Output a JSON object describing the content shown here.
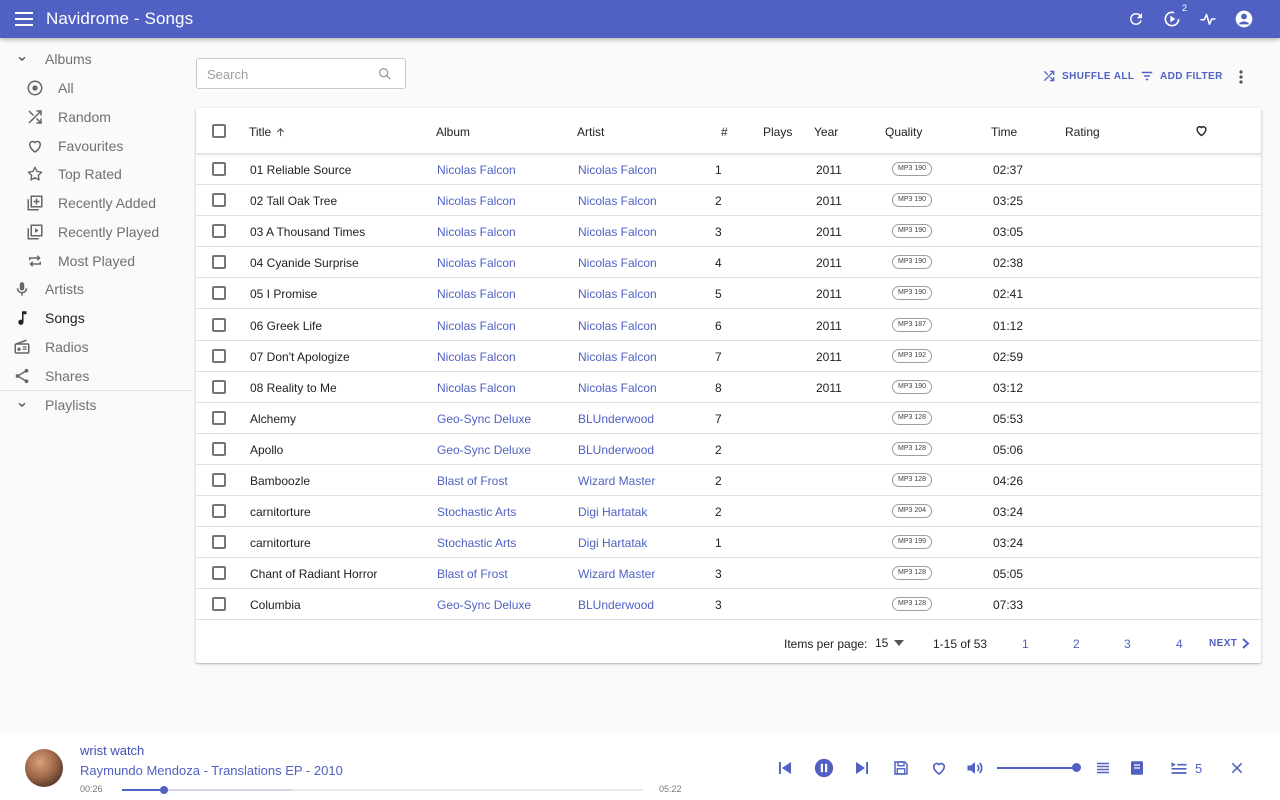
{
  "appbar": {
    "title": "Navidrome - Songs",
    "activity_badge": "2"
  },
  "sidebar": {
    "albums_label": "Albums",
    "album_items": [
      "All",
      "Random",
      "Favourites",
      "Top Rated",
      "Recently Added",
      "Recently Played",
      "Most Played"
    ],
    "artists_label": "Artists",
    "songs_label": "Songs",
    "radios_label": "Radios",
    "shares_label": "Shares",
    "playlists_label": "Playlists"
  },
  "toolbar": {
    "search_placeholder": "Search",
    "shuffle_all": "SHUFFLE ALL",
    "add_filter": "ADD FILTER"
  },
  "table": {
    "headers": {
      "title": "Title",
      "album": "Album",
      "artist": "Artist",
      "track": "#",
      "plays": "Plays",
      "year": "Year",
      "quality": "Quality",
      "time": "Time",
      "rating": "Rating"
    },
    "rows": [
      {
        "title": "01 Reliable Source",
        "album": "Nicolas Falcon",
        "artist": "Nicolas Falcon",
        "track": "1",
        "year": "2011",
        "quality": "MP3 190",
        "time": "02:37"
      },
      {
        "title": "02 Tall Oak Tree",
        "album": "Nicolas Falcon",
        "artist": "Nicolas Falcon",
        "track": "2",
        "year": "2011",
        "quality": "MP3 190",
        "time": "03:25"
      },
      {
        "title": "03 A Thousand Times",
        "album": "Nicolas Falcon",
        "artist": "Nicolas Falcon",
        "track": "3",
        "year": "2011",
        "quality": "MP3 190",
        "time": "03:05"
      },
      {
        "title": "04 Cyanide Surprise",
        "album": "Nicolas Falcon",
        "artist": "Nicolas Falcon",
        "track": "4",
        "year": "2011",
        "quality": "MP3 190",
        "time": "02:38"
      },
      {
        "title": "05 I Promise",
        "album": "Nicolas Falcon",
        "artist": "Nicolas Falcon",
        "track": "5",
        "year": "2011",
        "quality": "MP3 190",
        "time": "02:41"
      },
      {
        "title": "06 Greek Life",
        "album": "Nicolas Falcon",
        "artist": "Nicolas Falcon",
        "track": "6",
        "year": "2011",
        "quality": "MP3 187",
        "time": "01:12"
      },
      {
        "title": "07 Don't Apologize",
        "album": "Nicolas Falcon",
        "artist": "Nicolas Falcon",
        "track": "7",
        "year": "2011",
        "quality": "MP3 192",
        "time": "02:59"
      },
      {
        "title": "08 Reality to Me",
        "album": "Nicolas Falcon",
        "artist": "Nicolas Falcon",
        "track": "8",
        "year": "2011",
        "quality": "MP3 190",
        "time": "03:12"
      },
      {
        "title": "Alchemy",
        "album": "Geo-Sync Deluxe",
        "artist": "BLUnderwood",
        "track": "7",
        "year": "",
        "quality": "MP3 128",
        "time": "05:53"
      },
      {
        "title": "Apollo",
        "album": "Geo-Sync Deluxe",
        "artist": "BLUnderwood",
        "track": "2",
        "year": "",
        "quality": "MP3 128",
        "time": "05:06"
      },
      {
        "title": "Bamboozle",
        "album": "Blast of Frost",
        "artist": "Wizard Master",
        "track": "2",
        "year": "",
        "quality": "MP3 128",
        "time": "04:26"
      },
      {
        "title": "carnitorture",
        "album": "Stochastic Arts",
        "artist": "Digi Hartatak",
        "track": "2",
        "year": "",
        "quality": "MP3 204",
        "time": "03:24"
      },
      {
        "title": "carnitorture",
        "album": "Stochastic Arts",
        "artist": "Digi Hartatak",
        "track": "1",
        "year": "",
        "quality": "MP3 199",
        "time": "03:24"
      },
      {
        "title": "Chant of Radiant Horror",
        "album": "Blast of Frost",
        "artist": "Wizard Master",
        "track": "3",
        "year": "",
        "quality": "MP3 128",
        "time": "05:05"
      },
      {
        "title": "Columbia",
        "album": "Geo-Sync Deluxe",
        "artist": "BLUnderwood",
        "track": "3",
        "year": "",
        "quality": "MP3 128",
        "time": "07:33"
      }
    ]
  },
  "pagination": {
    "items_per_page_label": "Items per page:",
    "per_page": "15",
    "range": "1-15 of 53",
    "pages": [
      "1",
      "2",
      "3",
      "4"
    ],
    "next": "NEXT"
  },
  "player": {
    "title": "wrist watch",
    "subtitle": "Raymundo Mendoza - Translations EP - 2010",
    "elapsed": "00:26",
    "duration": "05:22",
    "progress_fraction": 0.081,
    "volume_fraction": 1.0,
    "queue_count": "5"
  },
  "colors": {
    "primary": "#5061c3",
    "text": "#212121",
    "muted": "#707070"
  }
}
